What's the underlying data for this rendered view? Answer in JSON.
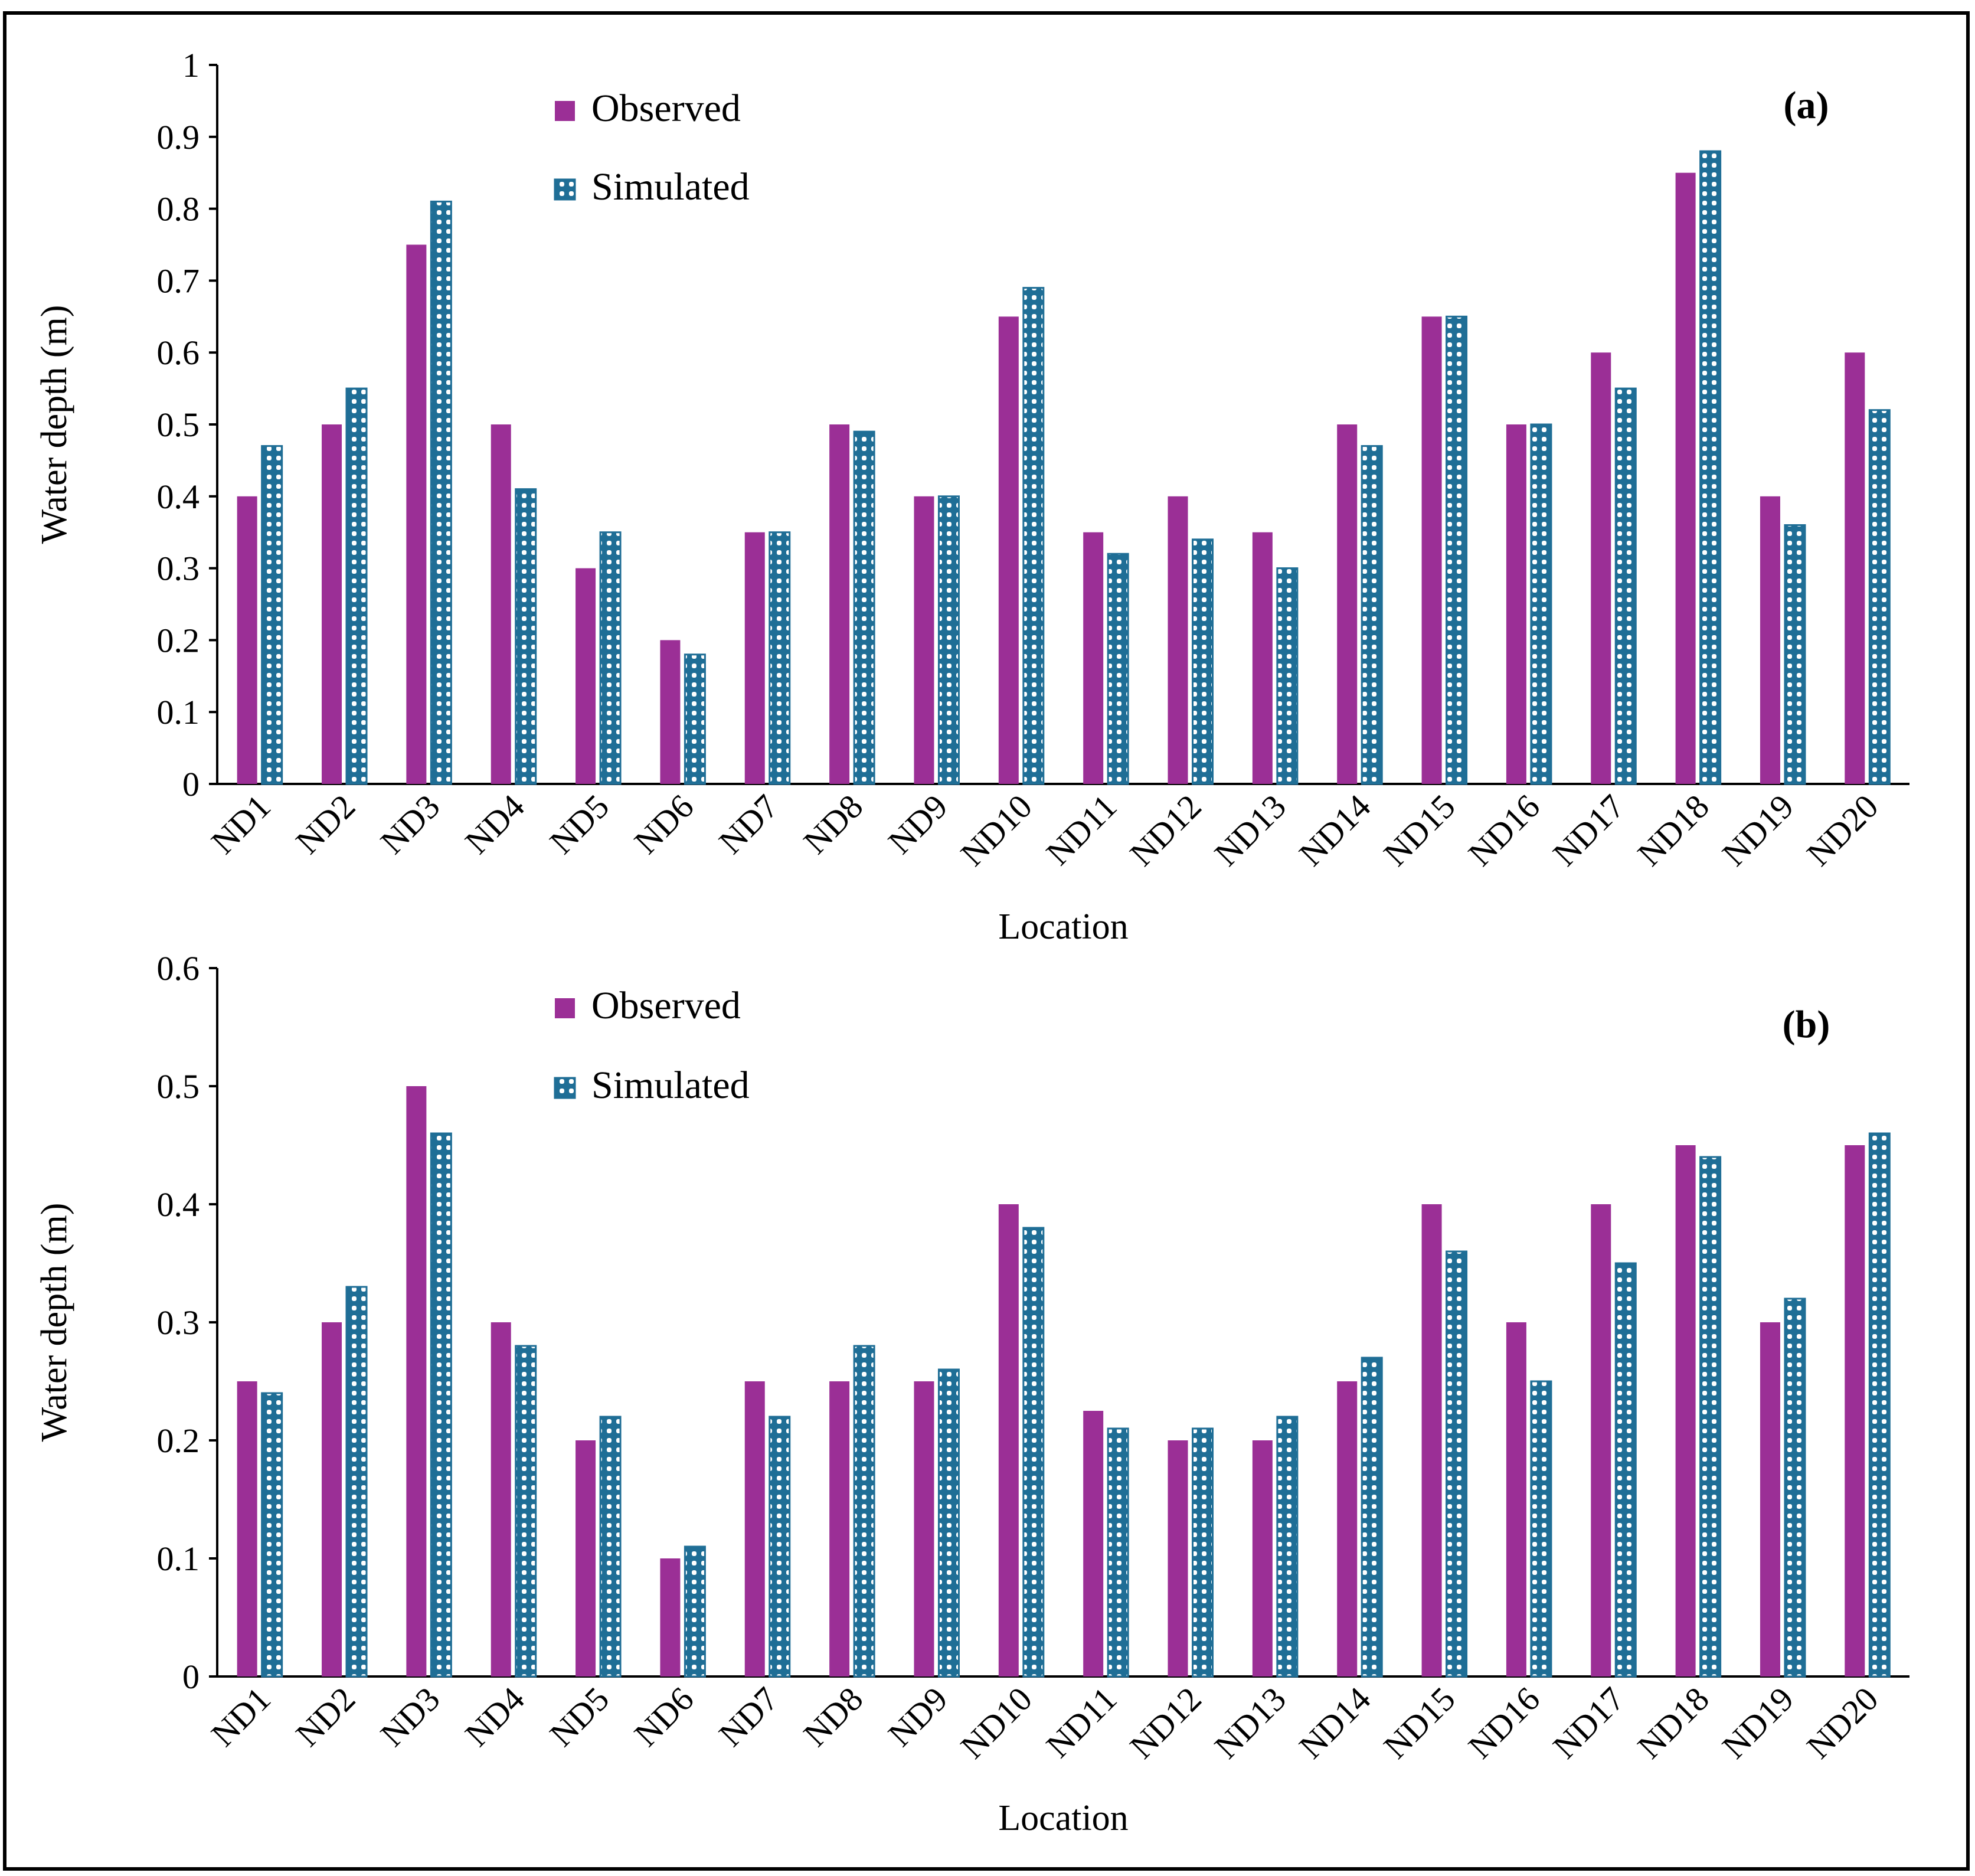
{
  "colors": {
    "observed": "#9b2f96",
    "simulated_stroke": "#1f6e96",
    "simulated_dot": "#ffffff",
    "axis": "#000000",
    "frame": "#000000"
  },
  "chart_data": [
    {
      "type": "bar",
      "panel": "(a)",
      "title": "",
      "xlabel": "Location",
      "ylabel": "Water depth (m)",
      "ylim": [
        0,
        1
      ],
      "ytick_step": 0.1,
      "yticks": [
        "0",
        "0.1",
        "0.2",
        "0.3",
        "0.4",
        "0.5",
        "0.6",
        "0.7",
        "0.8",
        "0.9",
        "1"
      ],
      "grid": false,
      "legend_position": "top-left-center",
      "categories": [
        "ND1",
        "ND2",
        "ND3",
        "ND4",
        "ND5",
        "ND6",
        "ND7",
        "ND8",
        "ND9",
        "ND10",
        "ND11",
        "ND12",
        "ND13",
        "ND14",
        "ND15",
        "ND16",
        "ND17",
        "ND18",
        "ND19",
        "ND20"
      ],
      "series": [
        {
          "name": "Observed",
          "values": [
            0.4,
            0.5,
            0.75,
            0.5,
            0.3,
            0.2,
            0.35,
            0.5,
            0.4,
            0.65,
            0.35,
            0.4,
            0.35,
            0.5,
            0.65,
            0.5,
            0.6,
            0.85,
            0.4,
            0.6
          ]
        },
        {
          "name": "Simulated",
          "values": [
            0.47,
            0.55,
            0.81,
            0.41,
            0.35,
            0.18,
            0.35,
            0.49,
            0.4,
            0.69,
            0.32,
            0.34,
            0.3,
            0.47,
            0.65,
            0.5,
            0.55,
            0.88,
            0.36,
            0.52
          ]
        }
      ]
    },
    {
      "type": "bar",
      "panel": "(b)",
      "title": "",
      "xlabel": "Location",
      "ylabel": "Water depth (m)",
      "ylim": [
        0,
        0.6
      ],
      "ytick_step": 0.1,
      "yticks": [
        "0",
        "0.1",
        "0.2",
        "0.3",
        "0.4",
        "0.5",
        "0.6"
      ],
      "grid": false,
      "legend_position": "top-left-center",
      "categories": [
        "ND1",
        "ND2",
        "ND3",
        "ND4",
        "ND5",
        "ND6",
        "ND7",
        "ND8",
        "ND9",
        "ND10",
        "ND11",
        "ND12",
        "ND13",
        "ND14",
        "ND15",
        "ND16",
        "ND17",
        "ND18",
        "ND19",
        "ND20"
      ],
      "series": [
        {
          "name": "Observed",
          "values": [
            0.25,
            0.3,
            0.5,
            0.3,
            0.2,
            0.1,
            0.25,
            0.25,
            0.25,
            0.4,
            0.225,
            0.2,
            0.2,
            0.25,
            0.4,
            0.3,
            0.4,
            0.45,
            0.3,
            0.45
          ]
        },
        {
          "name": "Simulated",
          "values": [
            0.24,
            0.33,
            0.46,
            0.28,
            0.22,
            0.11,
            0.22,
            0.28,
            0.26,
            0.38,
            0.21,
            0.21,
            0.22,
            0.27,
            0.36,
            0.25,
            0.35,
            0.44,
            0.32,
            0.46
          ]
        }
      ]
    }
  ]
}
